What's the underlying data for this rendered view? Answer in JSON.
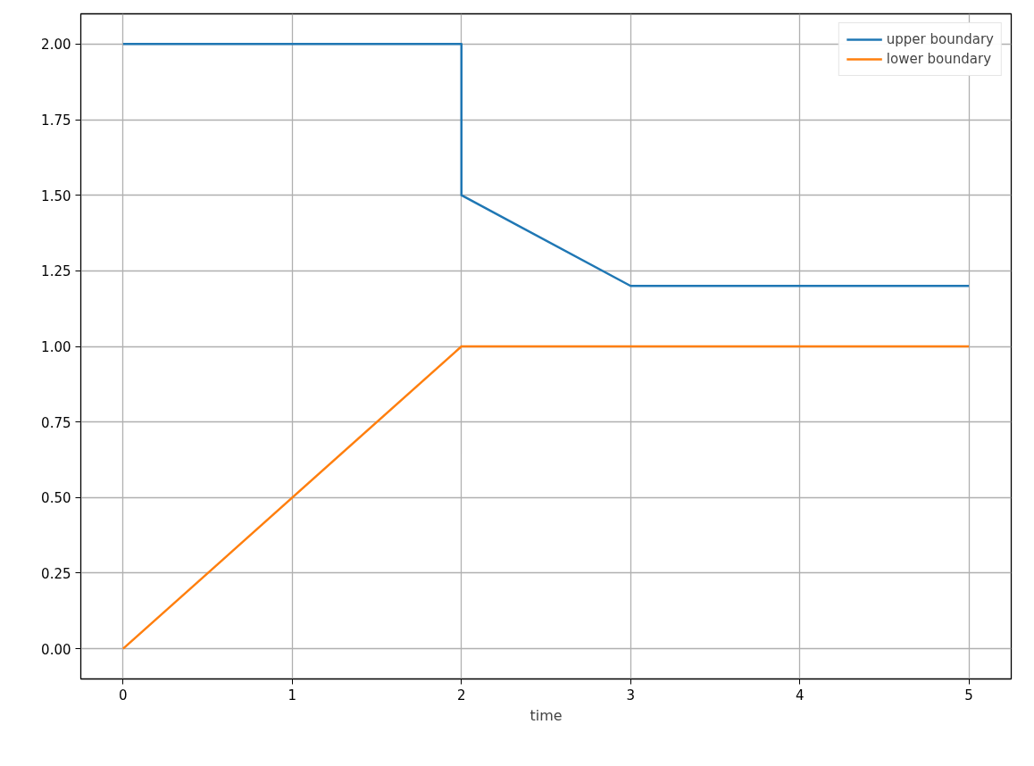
{
  "chart_data": {
    "type": "line",
    "xlabel": "time",
    "series": [
      {
        "name": "upper boundary",
        "color": "#1f77b4",
        "x": [
          0,
          2,
          2,
          3,
          5
        ],
        "values": [
          2,
          2,
          1.5,
          1.2,
          1.2
        ]
      },
      {
        "name": "lower boundary",
        "color": "#ff7f0e",
        "x": [
          0,
          2,
          5
        ],
        "values": [
          0,
          1,
          1
        ]
      }
    ],
    "xlim": [
      -0.25,
      5.25
    ],
    "xticks": [
      0,
      1,
      2,
      3,
      4,
      5
    ],
    "ylim": [
      -0.1,
      2.1
    ],
    "yticks": [
      {
        "value": 0,
        "label": "0.00"
      },
      {
        "value": 0.25,
        "label": "0.25"
      },
      {
        "value": 0.5,
        "label": "0.50"
      },
      {
        "value": 0.75,
        "label": "0.75"
      },
      {
        "value": 1,
        "label": "1.00"
      },
      {
        "value": 1.25,
        "label": "1.25"
      },
      {
        "value": 1.5,
        "label": "1.50"
      },
      {
        "value": 1.75,
        "label": "1.75"
      },
      {
        "value": 2,
        "label": "2.00"
      }
    ],
    "grid": true,
    "legend": "top right"
  }
}
